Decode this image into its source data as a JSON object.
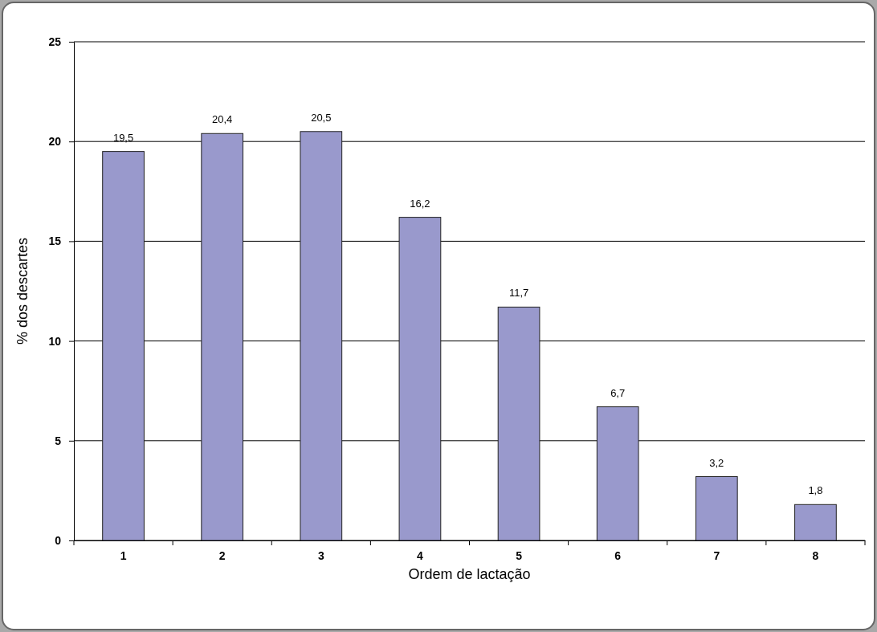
{
  "chart_data": {
    "type": "bar",
    "xlabel": "Ordem de lactação",
    "ylabel": "% dos descartes",
    "categories": [
      "1",
      "2",
      "3",
      "4",
      "5",
      "6",
      "7",
      "8"
    ],
    "values": [
      19.5,
      20.4,
      20.5,
      16.2,
      11.7,
      6.7,
      3.2,
      1.8
    ],
    "value_labels": [
      "19,5",
      "20,4",
      "20,5",
      "16,2",
      "11,7",
      "6,7",
      "3,2",
      "1,8"
    ],
    "color": "#9999cc",
    "ylim": [
      0,
      25
    ],
    "yticks": [
      0,
      5,
      10,
      15,
      20,
      25
    ],
    "grid": "y"
  }
}
